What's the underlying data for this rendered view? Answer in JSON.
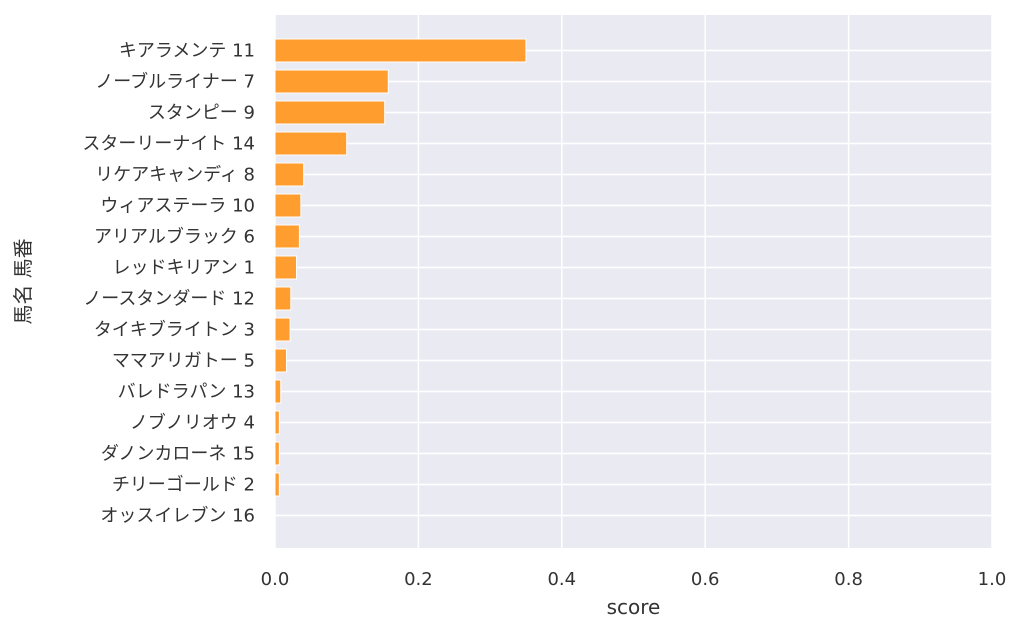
{
  "chart_data": {
    "type": "bar",
    "orientation": "horizontal",
    "categories": [
      "キアラメンテ 11",
      "ノーブルライナー 7",
      "スタンピー 9",
      "スターリーナイト 14",
      "リケアキャンディ 8",
      "ウィアステーラ 10",
      "アリアルブラック 6",
      "レッドキリアン 1",
      "ノースタンダード 12",
      "タイキブライトン 3",
      "ママアリガトー 5",
      "バレドラパン 13",
      "ノブノリオウ 4",
      "ダノンカローネ 15",
      "チリーゴールド 2",
      "オッスイレブン 16"
    ],
    "values": [
      0.35,
      0.158,
      0.153,
      0.1,
      0.04,
      0.036,
      0.034,
      0.03,
      0.022,
      0.021,
      0.016,
      0.008,
      0.006,
      0.006,
      0.006,
      0.0
    ],
    "xlabel": "score",
    "ylabel": "馬名 馬番",
    "xlim": [
      0,
      1.0
    ],
    "xticks": [
      "0.0",
      "0.2",
      "0.4",
      "0.6",
      "0.8",
      "1.0"
    ],
    "grid": true,
    "colors": {
      "bar": "#ff9d2e",
      "background": "#eaeaf2",
      "grid": "#ffffff"
    }
  }
}
